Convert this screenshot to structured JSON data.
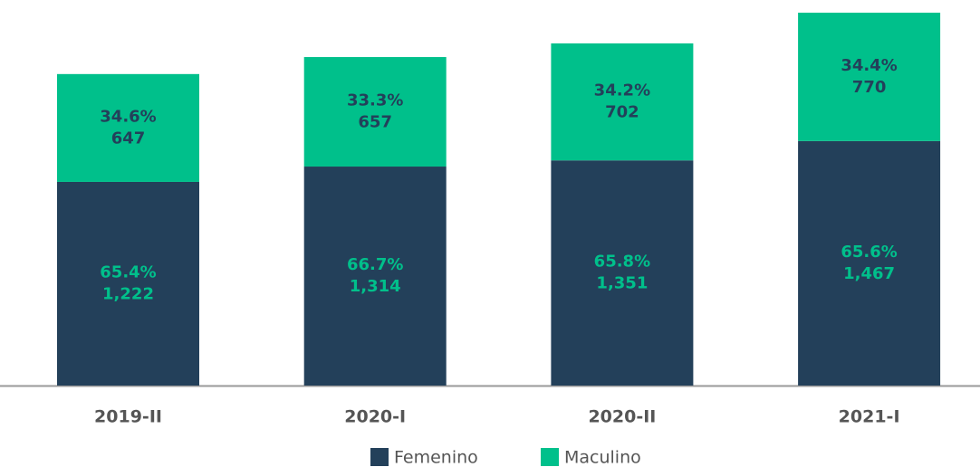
{
  "chart_data": {
    "type": "stacked_bar",
    "categories": [
      "2019-II",
      "2020-I",
      "2020-II",
      "2021-I"
    ],
    "series": [
      {
        "name": "Femenino",
        "color": "#23405a",
        "label_color": "#00c08b",
        "values": [
          1222,
          1314,
          1351,
          1467
        ],
        "value_labels": [
          "1,222",
          "1,314",
          "1,351",
          "1,467"
        ],
        "share_labels": [
          "65.4%",
          "66.7%",
          "65.8%",
          "65.6%"
        ]
      },
      {
        "name": "Maculino",
        "color": "#00c08b",
        "label_color": "#23405a",
        "values": [
          647,
          657,
          702,
          770
        ],
        "value_labels": [
          "647",
          "657",
          "702",
          "770"
        ],
        "share_labels": [
          "34.6%",
          "33.3%",
          "34.2%",
          "34.4%"
        ]
      }
    ],
    "ylim": [
      0,
      2240
    ]
  }
}
